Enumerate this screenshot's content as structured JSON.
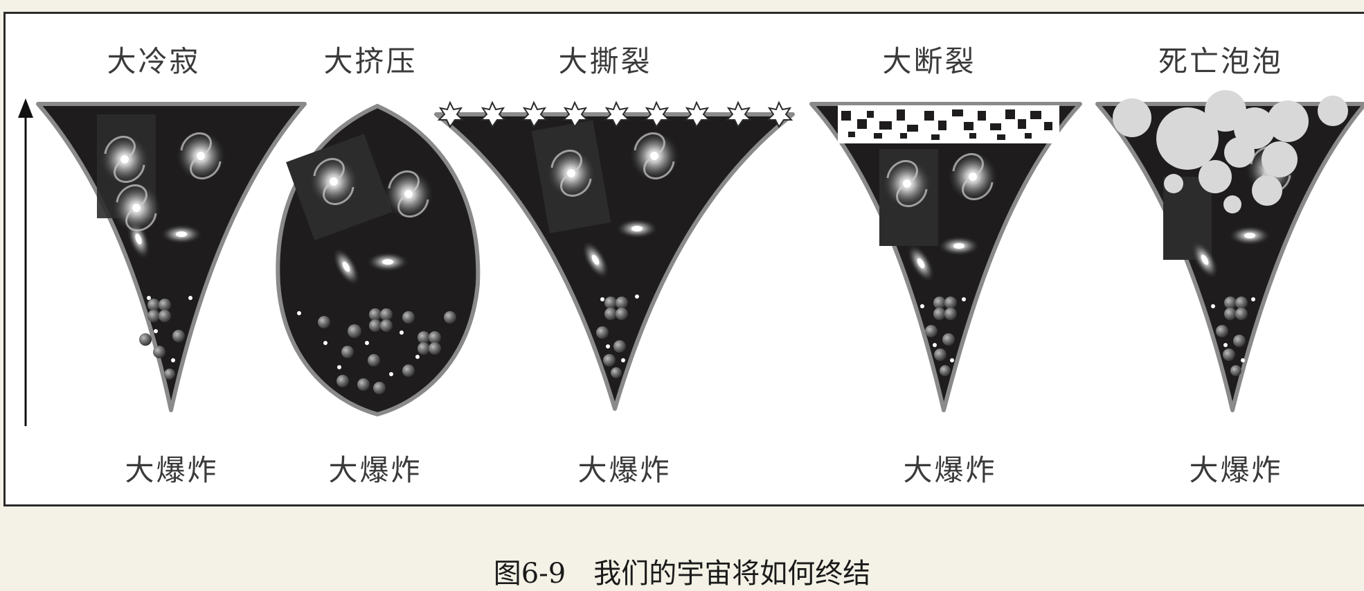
{
  "scenarios": [
    {
      "id": "big-freeze",
      "top_label": "大冷寂",
      "bottom_label": "大爆炸"
    },
    {
      "id": "big-crunch",
      "top_label": "大挤压",
      "bottom_label": "大爆炸"
    },
    {
      "id": "big-rip",
      "top_label": "大撕裂",
      "bottom_label": "大爆炸"
    },
    {
      "id": "big-snap",
      "top_label": "大断裂",
      "bottom_label": "大爆炸"
    },
    {
      "id": "death-bubbles",
      "top_label": "死亡泡泡",
      "bottom_label": "大爆炸"
    }
  ],
  "caption": {
    "number": "图6-9",
    "text": "我们的宇宙将如何终结"
  },
  "colors": {
    "page_background": "#f4f1e6",
    "panel_background": "#ffffff",
    "universe_fill": "#1e1c1d",
    "universe_outline": "#8a8a8a",
    "bubble": "#d8d8d8"
  }
}
